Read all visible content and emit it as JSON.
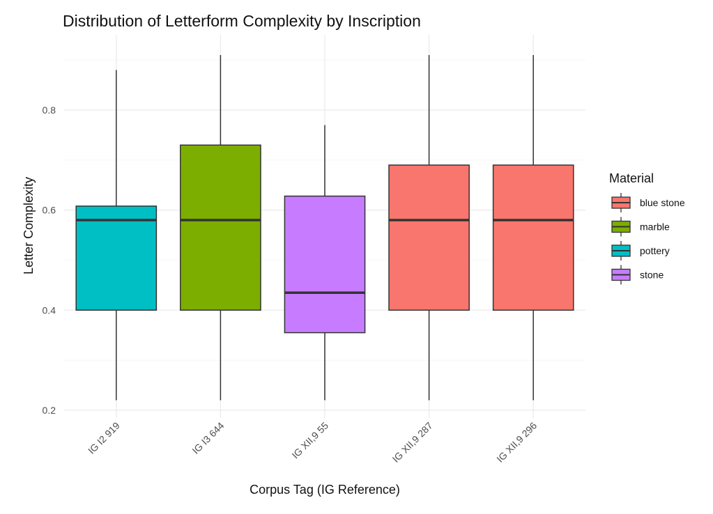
{
  "chart_data": {
    "type": "box",
    "title": "Distribution of Letterform Complexity by Inscription",
    "xlabel": "Corpus Tag (IG Reference)",
    "ylabel": "Letter Complexity",
    "ylim": [
      0.2,
      0.93
    ],
    "y_ticks": [
      0.2,
      0.4,
      0.6,
      0.8
    ],
    "y_tick_labels": [
      "0.2",
      "0.4",
      "0.6",
      "0.8"
    ],
    "grid": true,
    "legend": {
      "title": "Material",
      "placement": "right",
      "entries": [
        {
          "label": "blue stone",
          "color": "#F8766D"
        },
        {
          "label": "marble",
          "color": "#7CAE00"
        },
        {
          "label": "pottery",
          "color": "#00BFC4"
        },
        {
          "label": "stone",
          "color": "#C77CFF"
        }
      ]
    },
    "categories": [
      "IG I2 919",
      "IG I3 644",
      "IG XII,9 55",
      "IG XII,9 287",
      "IG XII,9 296"
    ],
    "boxes": [
      {
        "category": "IG I2 919",
        "material": "pottery",
        "color": "#00BFC4",
        "min": 0.22,
        "q1": 0.4,
        "median": 0.58,
        "q3": 0.608,
        "max": 0.88
      },
      {
        "category": "IG I3 644",
        "material": "marble",
        "color": "#7CAE00",
        "min": 0.22,
        "q1": 0.4,
        "median": 0.58,
        "q3": 0.73,
        "max": 0.91
      },
      {
        "category": "IG XII,9 55",
        "material": "stone",
        "color": "#C77CFF",
        "min": 0.22,
        "q1": 0.355,
        "median": 0.435,
        "q3": 0.628,
        "max": 0.77
      },
      {
        "category": "IG XII,9 287",
        "material": "blue stone",
        "color": "#F8766D",
        "min": 0.22,
        "q1": 0.4,
        "median": 0.58,
        "q3": 0.69,
        "max": 0.91
      },
      {
        "category": "IG XII,9 296",
        "material": "blue stone",
        "color": "#F8766D",
        "min": 0.22,
        "q1": 0.4,
        "median": 0.58,
        "q3": 0.69,
        "max": 0.91
      }
    ]
  }
}
